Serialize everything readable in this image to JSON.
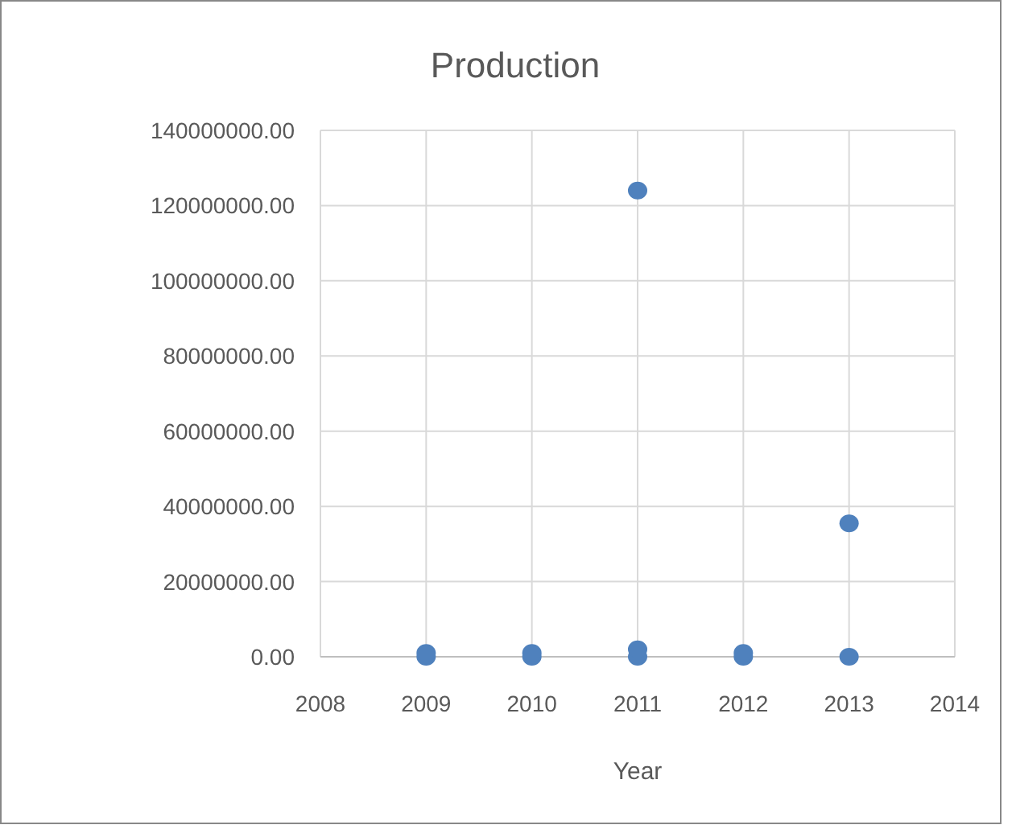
{
  "chart_data": {
    "type": "scatter",
    "title": "Production",
    "xlabel": "Year",
    "x": [
      2009,
      2009,
      2010,
      2010,
      2011,
      2011,
      2011,
      2012,
      2012,
      2013,
      2013
    ],
    "values": [
      0,
      1000000,
      0,
      1000000,
      124000000,
      0,
      2000000,
      0,
      1000000,
      35500000,
      0
    ],
    "color": "#4f81bd",
    "marker": "circle",
    "grid": true,
    "xlim": [
      2008,
      2014
    ],
    "xticks": [
      2008,
      2009,
      2010,
      2011,
      2012,
      2013,
      2014
    ],
    "ylim": [
      0,
      140000000
    ],
    "yticks": [
      {
        "value": 0,
        "label": "0.00"
      },
      {
        "value": 20000000,
        "label": "20000000.00"
      },
      {
        "value": 40000000,
        "label": "40000000.00"
      },
      {
        "value": 60000000,
        "label": "60000000.00"
      },
      {
        "value": 80000000,
        "label": "80000000.00"
      },
      {
        "value": 100000000,
        "label": "100000000.00"
      },
      {
        "value": 120000000,
        "label": "120000000.00"
      },
      {
        "value": 140000000,
        "label": "140000000.00"
      }
    ]
  }
}
